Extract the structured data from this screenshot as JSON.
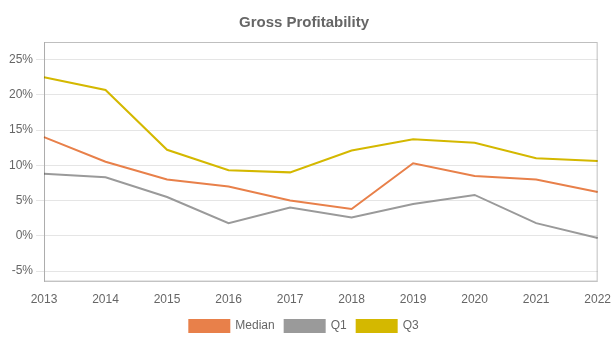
{
  "chart_data": {
    "type": "line",
    "title": "Gross Profitability",
    "categories": [
      "2013",
      "2014",
      "2015",
      "2016",
      "2017",
      "2018",
      "2019",
      "2020",
      "2021",
      "2022"
    ],
    "series": [
      {
        "name": "Median",
        "color": "#E8804A",
        "values": [
          0.14,
          0.105,
          0.08,
          0.07,
          0.05,
          0.038,
          0.103,
          0.085,
          0.08,
          0.062
        ]
      },
      {
        "name": "Q1",
        "color": "#9A9A9A",
        "values": [
          0.088,
          0.083,
          0.055,
          0.018,
          0.04,
          0.026,
          0.045,
          0.058,
          0.018,
          -0.003
        ]
      },
      {
        "name": "Q3",
        "color": "#D4B800",
        "values": [
          0.225,
          0.207,
          0.122,
          0.093,
          0.09,
          0.121,
          0.137,
          0.132,
          0.11,
          0.106
        ]
      }
    ],
    "ylim": [
      -0.065,
      0.275
    ],
    "yticks": [
      {
        "value": -0.05,
        "label": "-5%"
      },
      {
        "value": 0.0,
        "label": "0%"
      },
      {
        "value": 0.05,
        "label": "5%"
      },
      {
        "value": 0.1,
        "label": "10%"
      },
      {
        "value": 0.15,
        "label": "15%"
      },
      {
        "value": 0.2,
        "label": "20%"
      },
      {
        "value": 0.25,
        "label": "25%"
      }
    ],
    "grid": true,
    "legend": "bottom"
  }
}
